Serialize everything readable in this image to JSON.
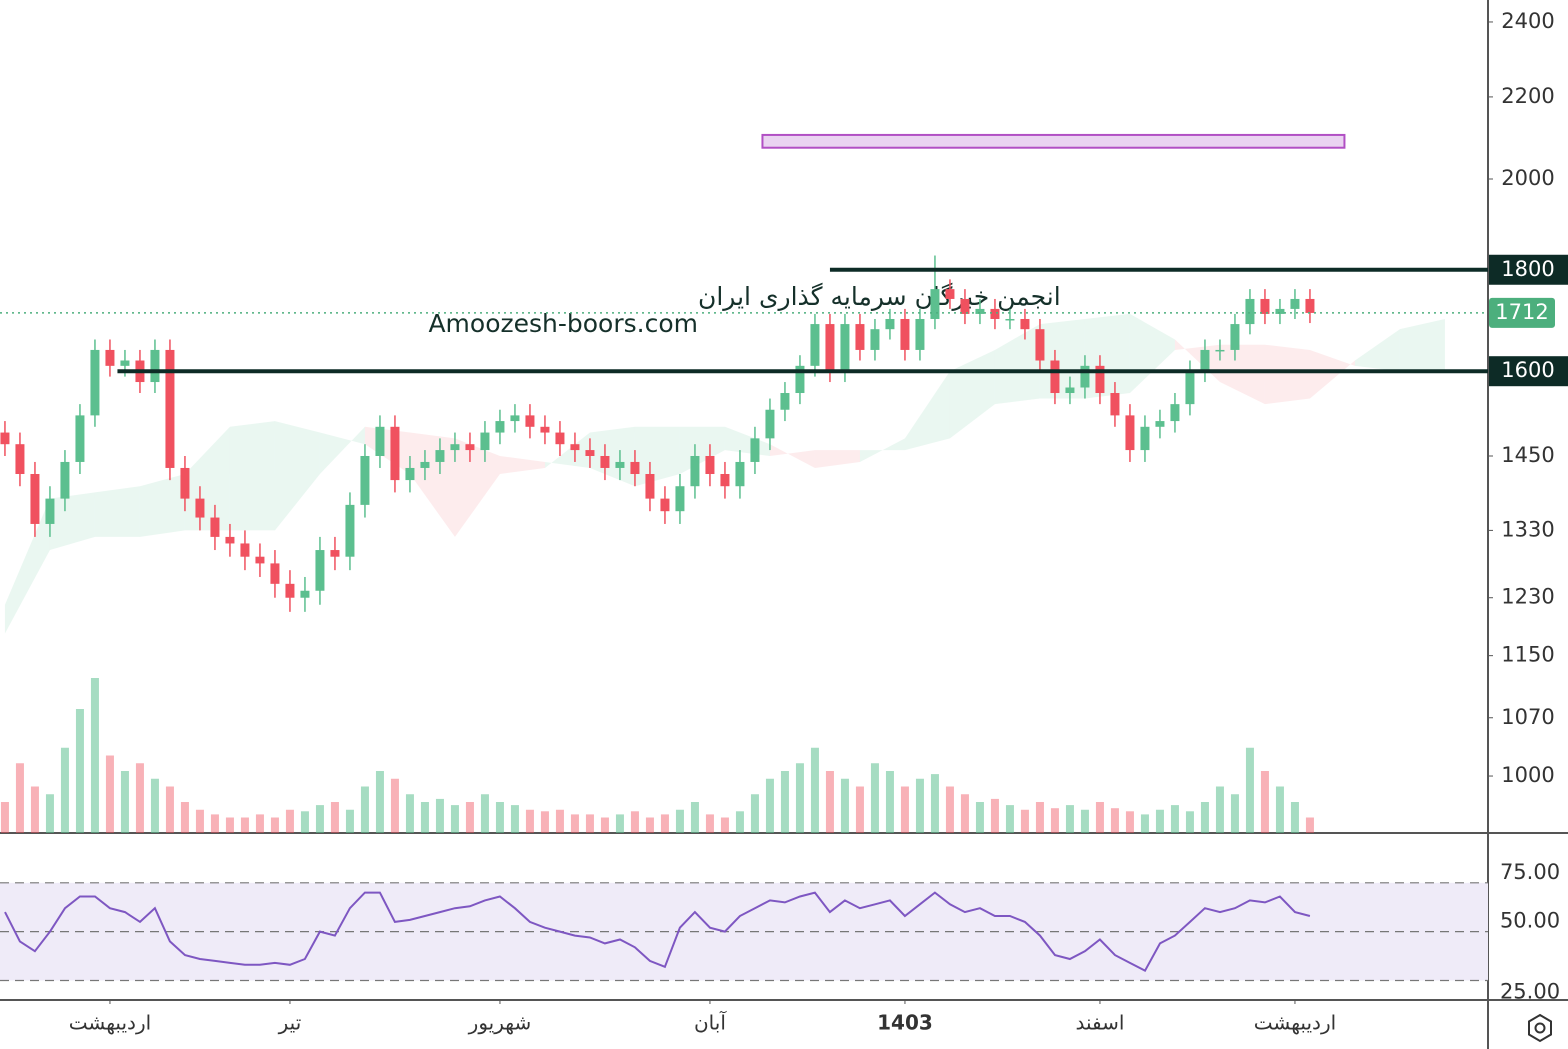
{
  "chart_data": [
    {
      "type": "candlestick",
      "xlim": [
        -0.33,
        98.87
      ],
      "ylim": [
        936,
        2462
      ],
      "log": true,
      "yticks": [
        2400,
        2200,
        2000,
        1450,
        1330,
        1230,
        1150,
        1070,
        1000
      ],
      "up_color": "#5cbf8f",
      "down_color": "#f0515f",
      "open": [
        1490,
        1470,
        1420,
        1340,
        1380,
        1440,
        1520,
        1640,
        1610,
        1620,
        1580,
        1640,
        1430,
        1380,
        1350,
        1320,
        1310,
        1290,
        1280,
        1250,
        1230,
        1240,
        1300,
        1290,
        1370,
        1450,
        1500,
        1410,
        1430,
        1440,
        1460,
        1470,
        1460,
        1490,
        1510,
        1520,
        1500,
        1490,
        1470,
        1460,
        1450,
        1430,
        1440,
        1420,
        1380,
        1360,
        1400,
        1450,
        1420,
        1400,
        1440,
        1480,
        1530,
        1560,
        1610,
        1690,
        1600,
        1690,
        1640,
        1680,
        1700,
        1640,
        1700,
        1760,
        1740,
        1710,
        1720,
        1700,
        1700,
        1680,
        1620,
        1560,
        1570,
        1610,
        1560,
        1520,
        1460,
        1500,
        1510,
        1540,
        1600,
        1640,
        1640,
        1690,
        1740,
        1710,
        1720,
        1740
      ],
      "high": [
        1510,
        1490,
        1440,
        1400,
        1460,
        1540,
        1660,
        1660,
        1640,
        1640,
        1660,
        1660,
        1450,
        1400,
        1370,
        1340,
        1330,
        1310,
        1300,
        1270,
        1260,
        1320,
        1320,
        1390,
        1470,
        1520,
        1520,
        1450,
        1460,
        1480,
        1490,
        1490,
        1510,
        1530,
        1540,
        1540,
        1520,
        1510,
        1490,
        1480,
        1470,
        1460,
        1460,
        1440,
        1400,
        1420,
        1470,
        1470,
        1440,
        1460,
        1500,
        1550,
        1580,
        1630,
        1710,
        1710,
        1710,
        1710,
        1700,
        1720,
        1720,
        1720,
        1830,
        1780,
        1760,
        1740,
        1740,
        1720,
        1720,
        1700,
        1640,
        1590,
        1630,
        1630,
        1580,
        1540,
        1520,
        1530,
        1560,
        1620,
        1660,
        1660,
        1710,
        1760,
        1760,
        1740,
        1760,
        1760
      ],
      "low": [
        1450,
        1400,
        1320,
        1320,
        1360,
        1420,
        1500,
        1590,
        1590,
        1560,
        1560,
        1410,
        1360,
        1330,
        1300,
        1290,
        1270,
        1260,
        1230,
        1210,
        1210,
        1220,
        1270,
        1270,
        1350,
        1430,
        1390,
        1390,
        1410,
        1420,
        1440,
        1440,
        1440,
        1470,
        1490,
        1480,
        1470,
        1450,
        1440,
        1430,
        1410,
        1410,
        1400,
        1360,
        1340,
        1340,
        1380,
        1400,
        1380,
        1380,
        1420,
        1460,
        1510,
        1540,
        1590,
        1580,
        1580,
        1620,
        1620,
        1660,
        1620,
        1620,
        1680,
        1720,
        1690,
        1690,
        1680,
        1680,
        1660,
        1600,
        1540,
        1540,
        1550,
        1540,
        1500,
        1440,
        1440,
        1480,
        1490,
        1520,
        1580,
        1620,
        1620,
        1670,
        1690,
        1690,
        1700,
        1692
      ],
      "close": [
        1470,
        1420,
        1340,
        1380,
        1440,
        1520,
        1640,
        1610,
        1620,
        1580,
        1640,
        1430,
        1380,
        1350,
        1320,
        1310,
        1290,
        1280,
        1250,
        1230,
        1240,
        1300,
        1290,
        1370,
        1450,
        1500,
        1410,
        1430,
        1440,
        1460,
        1470,
        1460,
        1490,
        1510,
        1520,
        1500,
        1490,
        1470,
        1460,
        1450,
        1430,
        1440,
        1420,
        1380,
        1360,
        1400,
        1450,
        1420,
        1400,
        1440,
        1480,
        1530,
        1560,
        1610,
        1690,
        1600,
        1690,
        1640,
        1680,
        1700,
        1640,
        1700,
        1760,
        1740,
        1710,
        1720,
        1700,
        1700,
        1680,
        1620,
        1560,
        1570,
        1610,
        1560,
        1520,
        1460,
        1500,
        1510,
        1540,
        1600,
        1640,
        1640,
        1690,
        1740,
        1710,
        1720,
        1740,
        1712
      ],
      "volume": [
        20,
        45,
        30,
        25,
        55,
        80,
        100,
        50,
        40,
        45,
        35,
        30,
        20,
        15,
        12,
        10,
        10,
        12,
        10,
        15,
        14,
        18,
        20,
        15,
        30,
        40,
        35,
        25,
        20,
        22,
        18,
        20,
        25,
        20,
        18,
        15,
        14,
        15,
        12,
        12,
        10,
        12,
        14,
        10,
        12,
        15,
        20,
        12,
        10,
        14,
        25,
        35,
        40,
        45,
        55,
        40,
        35,
        30,
        45,
        40,
        30,
        35,
        38,
        30,
        25,
        20,
        22,
        18,
        15,
        20,
        16,
        18,
        15,
        20,
        16,
        14,
        12,
        15,
        18,
        14,
        20,
        30,
        25,
        55,
        40,
        30,
        20,
        10
      ],
      "levels": [
        {
          "value": 1800,
          "from": 55
        },
        {
          "value": 1600,
          "from": 7.5
        }
      ],
      "last_price": 1712,
      "zone": {
        "from": 50.5,
        "to": 89.3,
        "low": 2074,
        "high": 2105
      },
      "cloud": {
        "index": [
          0,
          3,
          6,
          9,
          12,
          15,
          18,
          21,
          24,
          27,
          30,
          33,
          36,
          39,
          42,
          45,
          48,
          51,
          54,
          57,
          60,
          63,
          66,
          69,
          72,
          75,
          78,
          81,
          84,
          87,
          90,
          93,
          96
        ],
        "span_a": [
          1220,
          1380,
          1390,
          1400,
          1420,
          1500,
          1510,
          1490,
          1470,
          1420,
          1320,
          1420,
          1430,
          1490,
          1500,
          1500,
          1500,
          1470,
          1430,
          1440,
          1480,
          1600,
          1640,
          1690,
          1700,
          1710,
          1660,
          1580,
          1540,
          1550,
          1620,
          1680,
          1700
        ],
        "span_b": [
          1180,
          1300,
          1320,
          1320,
          1330,
          1330,
          1330,
          1420,
          1500,
          1490,
          1480,
          1450,
          1440,
          1430,
          1400,
          1420,
          1460,
          1450,
          1460,
          1460,
          1460,
          1480,
          1540,
          1550,
          1550,
          1560,
          1640,
          1650,
          1650,
          1640,
          1610,
          1600,
          1600
        ]
      },
      "watermark": [
        "انجمن خبرگان سرمایه گذاری ایران",
        "Amoozesh-boors.com"
      ]
    },
    {
      "type": "line",
      "xlim": [
        -0.33,
        98.87
      ],
      "ylim": [
        15,
        100
      ],
      "color": "#7e57c2",
      "yticks": [
        {
          "value": 75,
          "label": "75.00"
        },
        {
          "value": 50,
          "label": "50.00"
        },
        {
          "value": 25,
          "label": "25.00"
        }
      ],
      "xticks": [
        {
          "value": 7,
          "label": "اردیبهشت"
        },
        {
          "value": 19,
          "label": "تیر"
        },
        {
          "value": 33,
          "label": "شهریور"
        },
        {
          "value": 47,
          "label": "آبان"
        },
        {
          "value": 60,
          "label": "1403"
        },
        {
          "value": 73,
          "label": "اسفند"
        },
        {
          "value": 86,
          "label": "اردیبهشت"
        }
      ],
      "values": [
        60,
        45,
        40,
        50,
        62,
        68,
        68,
        62,
        60,
        55,
        62,
        45,
        38,
        36,
        35,
        34,
        33,
        33,
        34,
        33,
        36,
        50,
        48,
        62,
        70,
        70,
        55,
        56,
        58,
        60,
        62,
        63,
        66,
        68,
        62,
        55,
        52,
        50,
        48,
        47,
        44,
        46,
        42,
        35,
        32,
        52,
        60,
        52,
        50,
        58,
        62,
        66,
        65,
        68,
        70,
        60,
        66,
        62,
        64,
        66,
        58,
        64,
        70,
        64,
        60,
        62,
        58,
        58,
        55,
        48,
        38,
        36,
        40,
        46,
        38,
        34,
        30,
        44,
        48,
        55,
        62,
        60,
        62,
        66,
        65,
        68,
        60,
        58
      ]
    }
  ]
}
